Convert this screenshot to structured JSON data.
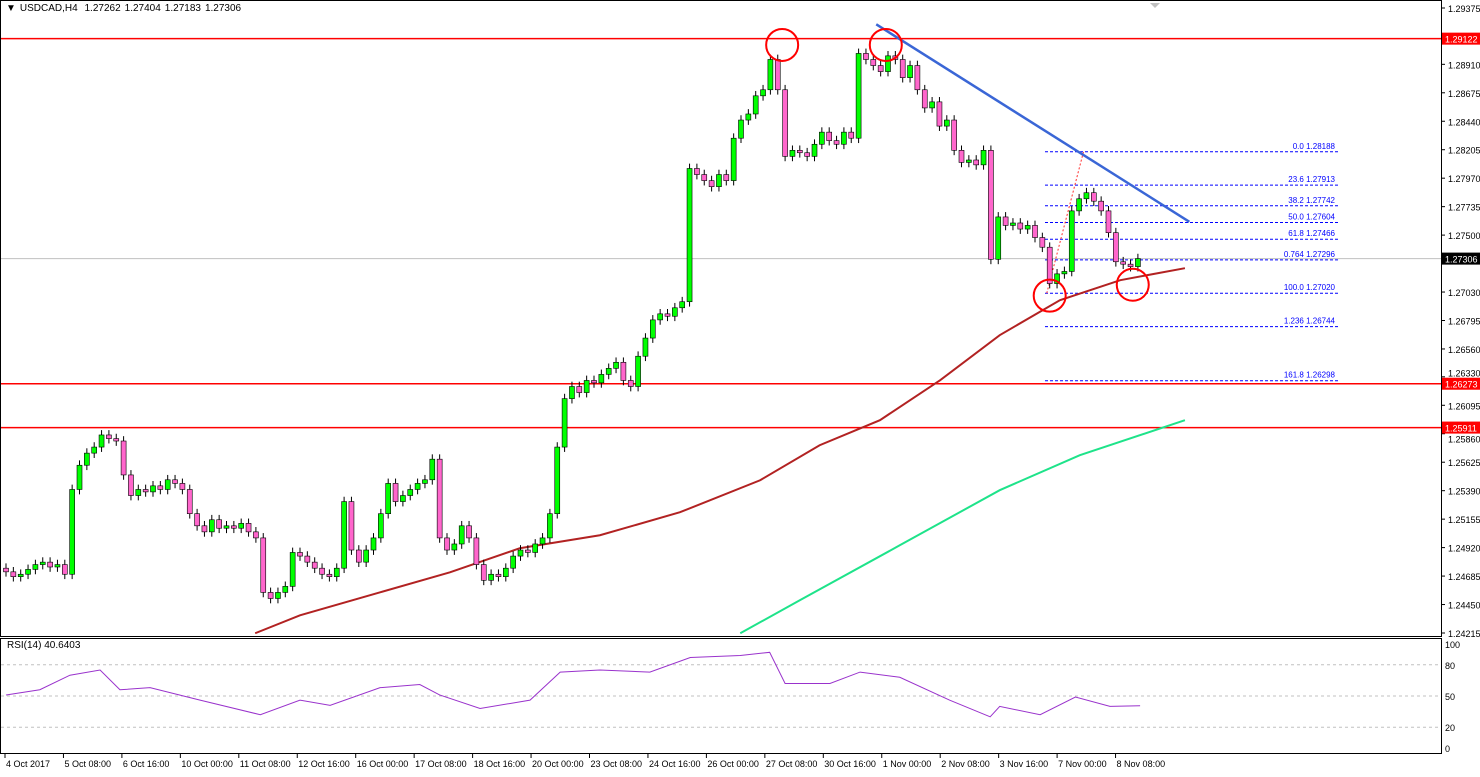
{
  "header": {
    "symbol": "USDCAD,H4",
    "open": "1.27262",
    "high": "1.27404",
    "low": "1.27183",
    "close": "1.27306"
  },
  "rsi_label": "RSI(14) 40.6403",
  "colors": {
    "bull": "#00ff00",
    "bear": "#ff66cc",
    "support_resistance": "#ff0000",
    "trendline": "#3a66d6",
    "fib": "#0000ff",
    "ma_fast": "#b22222",
    "ma_slow": "#1ee38a",
    "rsi": "#9932cc",
    "circle": "#ff0000"
  },
  "chart_data": {
    "type": "candlestick",
    "symbol": "USDCAD",
    "timeframe": "H4",
    "ylim": [
      1.24215,
      1.29375
    ],
    "price_ticks": [
      "1.29375",
      "1.28910",
      "1.28675",
      "1.28440",
      "1.28205",
      "1.27970",
      "1.27735",
      "1.27500",
      "1.27030",
      "1.26795",
      "1.26560",
      "1.26330",
      "1.26095",
      "1.25860",
      "1.25625",
      "1.25390",
      "1.25155",
      "1.24920",
      "1.24685",
      "1.24450",
      "1.24215"
    ],
    "time_ticks": [
      "4 Oct 2017",
      "5 Oct 08:00",
      "6 Oct 16:00",
      "10 Oct 00:00",
      "11 Oct 08:00",
      "12 Oct 16:00",
      "16 Oct 00:00",
      "17 Oct 08:00",
      "18 Oct 16:00",
      "20 Oct 00:00",
      "23 Oct 08:00",
      "24 Oct 16:00",
      "26 Oct 00:00",
      "27 Oct 08:00",
      "30 Oct 16:00",
      "1 Nov 00:00",
      "2 Nov 08:00",
      "3 Nov 16:00",
      "7 Nov 00:00",
      "8 Nov 08:00"
    ],
    "closes": [
      1.2472,
      1.2468,
      1.247,
      1.2474,
      1.2478,
      1.248,
      1.2476,
      1.2478,
      1.247,
      1.254,
      1.256,
      1.257,
      1.2575,
      1.2585,
      1.2582,
      1.258,
      1.2552,
      1.2535,
      1.254,
      1.2538,
      1.2543,
      1.254,
      1.2548,
      1.2545,
      1.254,
      1.252,
      1.251,
      1.2505,
      1.2515,
      1.2508,
      1.251,
      1.2508,
      1.2512,
      1.2505,
      1.25,
      1.2455,
      1.245,
      1.2455,
      1.246,
      1.2488,
      1.2485,
      1.248,
      1.2475,
      1.247,
      1.2468,
      1.2475,
      1.253,
      1.249,
      1.248,
      1.249,
      1.25,
      1.252,
      1.2545,
      1.253,
      1.2535,
      1.254,
      1.2545,
      1.2548,
      1.2565,
      1.25,
      1.249,
      1.2495,
      1.251,
      1.25,
      1.2478,
      1.2465,
      1.247,
      1.2468,
      1.2475,
      1.2485,
      1.249,
      1.2488,
      1.2495,
      1.25,
      1.252,
      1.2575,
      1.2615,
      1.2625,
      1.262,
      1.263,
      1.2628,
      1.2635,
      1.264,
      1.2645,
      1.263,
      1.2625,
      1.265,
      1.2665,
      1.268,
      1.2685,
      1.2683,
      1.269,
      1.2695,
      1.2805,
      1.28,
      1.2795,
      1.279,
      1.28,
      1.2795,
      1.283,
      1.2845,
      1.285,
      1.2865,
      1.287,
      1.2895,
      1.287,
      1.2815,
      1.282,
      1.2818,
      1.2815,
      1.2825,
      1.2835,
      1.2828,
      1.2825,
      1.2835,
      1.283,
      1.29,
      1.2895,
      1.289,
      1.2885,
      1.2898,
      1.2895,
      1.288,
      1.289,
      1.287,
      1.2855,
      1.286,
      1.284,
      1.2845,
      1.282,
      1.281,
      1.2812,
      1.2808,
      1.282,
      1.273,
      1.2765,
      1.2758,
      1.276,
      1.2755,
      1.2758,
      1.2748,
      1.274,
      1.271,
      1.2718,
      1.272,
      1.277,
      1.278,
      1.2785,
      1.2778,
      1.277,
      1.2752,
      1.2728,
      1.2726,
      1.2724,
      1.27306
    ],
    "horizontal_levels": [
      {
        "price": 1.29122,
        "label": "1.29122"
      },
      {
        "price": 1.26273,
        "label": "1.26273"
      },
      {
        "price": 1.25911,
        "label": "1.25911"
      }
    ],
    "current_price": {
      "price": 1.27306,
      "label": "1.27306"
    },
    "moving_averages": [
      {
        "role": "fast",
        "points": [
          [
            33.9,
            1.24213
          ],
          [
            40,
            1.24361
          ],
          [
            50.9,
            1.24551
          ],
          [
            60.4,
            1.24716
          ],
          [
            69.9,
            1.24915
          ],
          [
            80.8,
            1.25022
          ],
          [
            91.7,
            1.25212
          ],
          [
            102.6,
            1.25476
          ],
          [
            110.7,
            1.25765
          ],
          [
            118.9,
            1.25972
          ],
          [
            127.1,
            1.26302
          ],
          [
            135.2,
            1.26674
          ],
          [
            143.4,
            1.26963
          ],
          [
            151.6,
            1.27128
          ],
          [
            160.4,
            1.27227
          ]
        ]
      },
      {
        "role": "slow",
        "points": [
          [
            99.9,
            1.24213
          ],
          [
            108,
            1.24485
          ],
          [
            121.6,
            1.24939
          ],
          [
            135.2,
            1.25394
          ],
          [
            146.1,
            1.25683
          ],
          [
            160.4,
            1.25972
          ]
        ]
      }
    ],
    "trendline": {
      "from": [
        118.4,
        1.2924
      ],
      "to": [
        161,
        1.2761
      ]
    },
    "fib_swing": {
      "from": [
        141.6,
        1.2702
      ],
      "to": [
        146.6,
        1.28188
      ]
    },
    "fibonacci": [
      {
        "label": "0.0 1.28188",
        "price": 1.28188
      },
      {
        "label": "23.6 1.27913",
        "price": 1.27913
      },
      {
        "label": "38.2 1.27742",
        "price": 1.27742
      },
      {
        "label": "50.0 1.27604",
        "price": 1.27604
      },
      {
        "label": "61.8 1.27466",
        "price": 1.27466
      },
      {
        "label": "0.764 1.27296",
        "price": 1.27296
      },
      {
        "label": "100.0 1.27020",
        "price": 1.2702
      },
      {
        "label": "1.236 1.26744",
        "price": 1.26744
      },
      {
        "label": "161.8 1.26298",
        "price": 1.26298
      }
    ],
    "circles": [
      [
        105.6,
        1.2907
      ],
      [
        119.7,
        1.2907
      ],
      [
        142,
        1.27
      ],
      [
        153.3,
        1.2709
      ]
    ],
    "rsi": {
      "period": 14,
      "value": 40.6403,
      "ylim": [
        0,
        100
      ],
      "ticks": [
        "100",
        "80",
        "50",
        "20",
        "0"
      ],
      "levels": [
        80,
        50,
        20
      ],
      "points": [
        [
          0,
          51
        ],
        [
          4.6,
          56
        ],
        [
          8.7,
          70
        ],
        [
          12.8,
          75
        ],
        [
          15.5,
          56
        ],
        [
          19.6,
          58
        ],
        [
          26.4,
          46
        ],
        [
          34.6,
          32
        ],
        [
          40,
          46
        ],
        [
          44.1,
          41
        ],
        [
          50.9,
          58
        ],
        [
          56.3,
          61
        ],
        [
          59,
          51
        ],
        [
          64.5,
          38
        ],
        [
          71.3,
          46
        ],
        [
          75.4,
          73
        ],
        [
          80.8,
          75
        ],
        [
          87.6,
          73
        ],
        [
          93.1,
          87
        ],
        [
          99.9,
          89
        ],
        [
          103.9,
          92
        ],
        [
          106,
          62
        ],
        [
          112.1,
          62
        ],
        [
          116.2,
          73
        ],
        [
          121.6,
          68
        ],
        [
          128.4,
          46
        ],
        [
          133.9,
          30
        ],
        [
          135.2,
          40
        ],
        [
          140.7,
          32
        ],
        [
          145.5,
          49
        ],
        [
          150.2,
          40
        ],
        [
          154.3,
          40.6
        ]
      ]
    }
  }
}
